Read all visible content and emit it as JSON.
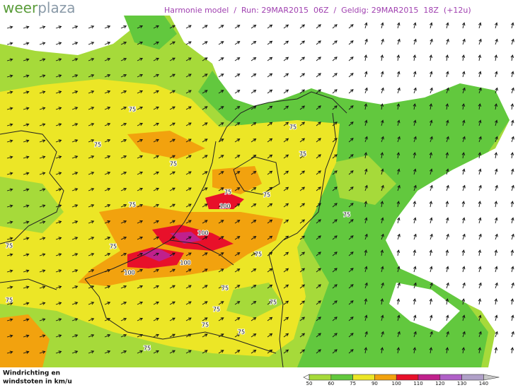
{
  "header": {
    "logo_first": "weer",
    "logo_second": "plaza",
    "title": "Harmonie model  /  Run: 29MAR2015  06Z  /  Geldig: 29MAR2015  18Z  (+12u)"
  },
  "map": {
    "contour_labels": [
      75,
      75,
      75,
      75,
      75,
      75,
      75,
      100,
      75,
      75,
      100,
      75,
      75,
      100,
      75,
      100,
      75,
      75,
      75,
      75,
      75,
      75,
      75
    ]
  },
  "footer": {
    "line1": "Windrichting en",
    "line2": "windstoten in km/u"
  },
  "legend": {
    "ticks": [
      50,
      60,
      75,
      90,
      100,
      110,
      120,
      130,
      140
    ]
  }
}
